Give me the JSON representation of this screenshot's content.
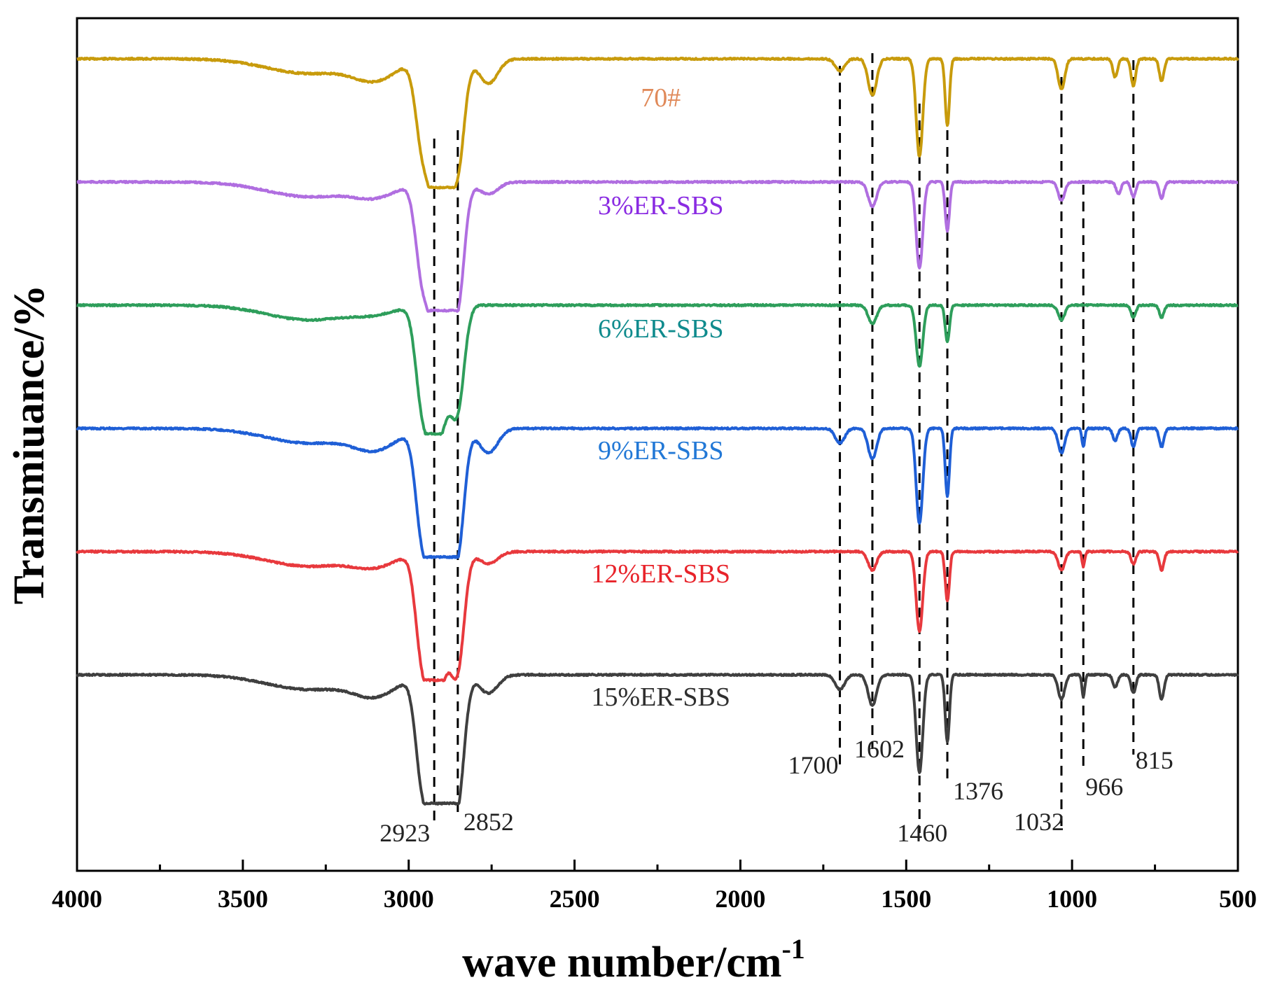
{
  "chart_data": {
    "type": "line",
    "title": "",
    "xlabel": "wave number/cm",
    "xlabel_superscript": "-1",
    "ylabel": "Transmiuance/%",
    "xlim": [
      4000,
      500
    ],
    "x_reversed": true,
    "xticks": [
      4000,
      3500,
      3000,
      2500,
      2000,
      1500,
      1000,
      500
    ],
    "yticks_shown": false,
    "grid": false,
    "legend": "inline labels above each trace",
    "peaks": [
      {
        "label": "2923",
        "x": 2923
      },
      {
        "label": "2852",
        "x": 2852
      },
      {
        "label": "1700",
        "x": 1700
      },
      {
        "label": "1602",
        "x": 1602
      },
      {
        "label": "1460",
        "x": 1460
      },
      {
        "label": "1376",
        "x": 1376
      },
      {
        "label": "1032",
        "x": 1032
      },
      {
        "label": "966",
        "x": 966
      },
      {
        "label": "815",
        "x": 815
      }
    ],
    "series": [
      {
        "name": "70#",
        "color": "#c89b0c",
        "label_color": "#e08a5a",
        "baseline": 5,
        "label_x": 2240,
        "peaks": [
          [
            3100,
            0.15
          ],
          [
            2960,
            0.65
          ],
          [
            2923,
            0.9
          ],
          [
            2890,
            0.8
          ],
          [
            2852,
            0.85
          ],
          [
            2760,
            0.2
          ],
          [
            1700,
            0.1
          ],
          [
            1602,
            0.3
          ],
          [
            1460,
            0.8
          ],
          [
            1376,
            0.55
          ],
          [
            1032,
            0.25
          ],
          [
            870,
            0.15
          ],
          [
            815,
            0.22
          ],
          [
            730,
            0.18
          ]
        ]
      },
      {
        "name": "3%ER-SBS",
        "color": "#b06ee0",
        "label_color": "#8a2be2",
        "baseline": 4,
        "label_x": 2240,
        "peaks": [
          [
            3100,
            0.1
          ],
          [
            2960,
            0.7
          ],
          [
            2923,
            0.9
          ],
          [
            2890,
            0.75
          ],
          [
            2852,
            0.95
          ],
          [
            2760,
            0.1
          ],
          [
            1602,
            0.2
          ],
          [
            1460,
            0.7
          ],
          [
            1376,
            0.4
          ],
          [
            1032,
            0.15
          ],
          [
            860,
            0.1
          ],
          [
            815,
            0.12
          ],
          [
            730,
            0.13
          ]
        ]
      },
      {
        "name": "6%ER-SBS",
        "color": "#2e9e5b",
        "label_color": "#0f8b8d",
        "baseline": 3,
        "label_x": 2240,
        "peaks": [
          [
            3100,
            0.05
          ],
          [
            2960,
            0.75
          ],
          [
            2923,
            0.95
          ],
          [
            2890,
            0.6
          ],
          [
            2852,
            0.8
          ],
          [
            1602,
            0.15
          ],
          [
            1460,
            0.5
          ],
          [
            1376,
            0.3
          ],
          [
            1032,
            0.12
          ],
          [
            815,
            0.1
          ],
          [
            730,
            0.1
          ]
        ]
      },
      {
        "name": "9%ER-SBS",
        "color": "#1f5fd6",
        "label_color": "#2278d6",
        "baseline": 2,
        "label_x": 2240,
        "peaks": [
          [
            3100,
            0.15
          ],
          [
            2960,
            0.8
          ],
          [
            2923,
            0.92
          ],
          [
            2890,
            0.75
          ],
          [
            2852,
            0.95
          ],
          [
            2760,
            0.2
          ],
          [
            1700,
            0.12
          ],
          [
            1602,
            0.25
          ],
          [
            1460,
            0.78
          ],
          [
            1376,
            0.55
          ],
          [
            1032,
            0.2
          ],
          [
            966,
            0.15
          ],
          [
            870,
            0.1
          ],
          [
            815,
            0.15
          ],
          [
            730,
            0.15
          ]
        ]
      },
      {
        "name": "12%ER-SBS",
        "color": "#e8393d",
        "label_color": "#e8232a",
        "baseline": 1,
        "label_x": 2240,
        "peaks": [
          [
            3100,
            0.1
          ],
          [
            2960,
            0.8
          ],
          [
            2923,
            0.95
          ],
          [
            2890,
            0.65
          ],
          [
            2852,
            0.9
          ],
          [
            2760,
            0.1
          ],
          [
            1602,
            0.15
          ],
          [
            1460,
            0.65
          ],
          [
            1376,
            0.4
          ],
          [
            1032,
            0.15
          ],
          [
            966,
            0.12
          ],
          [
            815,
            0.1
          ],
          [
            730,
            0.15
          ]
        ]
      },
      {
        "name": "15%ER-SBS",
        "color": "#3f3f3f",
        "label_color": "#2f2f2f",
        "baseline": 0,
        "label_x": 2240,
        "peaks": [
          [
            3100,
            0.15
          ],
          [
            2960,
            0.8
          ],
          [
            2923,
            0.95
          ],
          [
            2890,
            0.8
          ],
          [
            2852,
            0.98
          ],
          [
            2760,
            0.15
          ],
          [
            1700,
            0.12
          ],
          [
            1602,
            0.25
          ],
          [
            1460,
            0.8
          ],
          [
            1376,
            0.55
          ],
          [
            1032,
            0.2
          ],
          [
            966,
            0.18
          ],
          [
            870,
            0.1
          ],
          [
            815,
            0.15
          ],
          [
            730,
            0.2
          ]
        ]
      }
    ]
  }
}
